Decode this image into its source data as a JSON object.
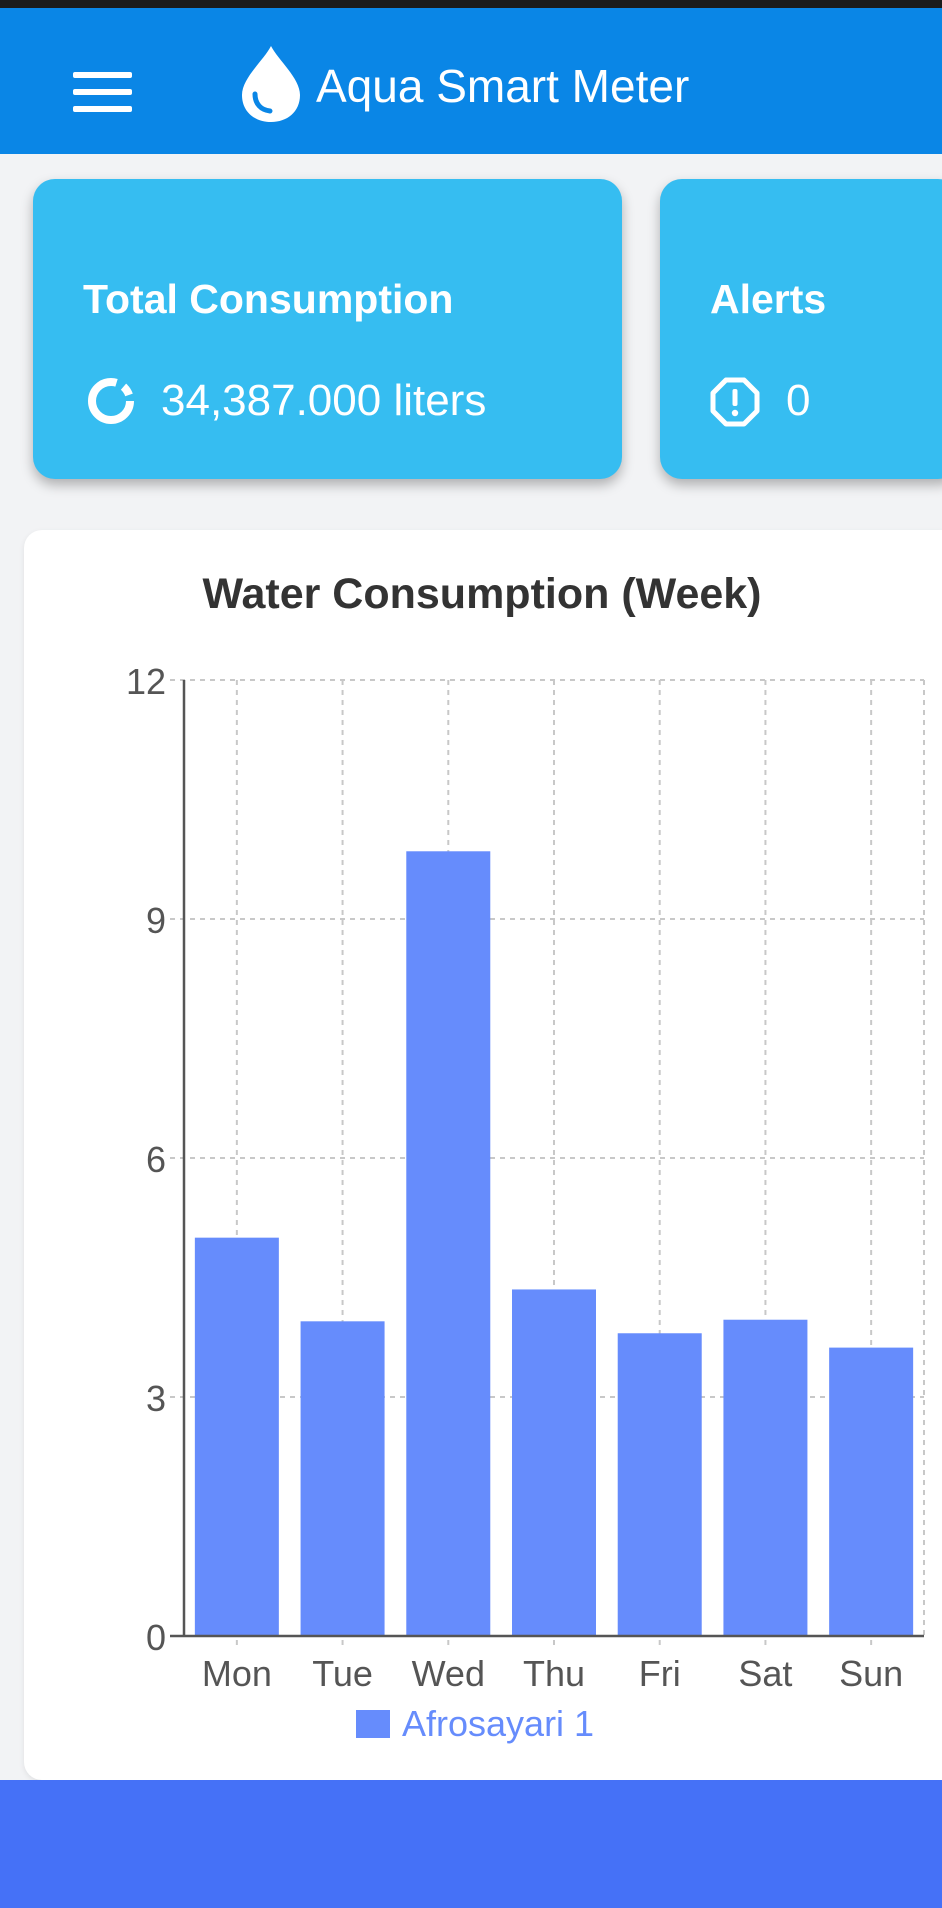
{
  "app": {
    "title": "Aqua Smart Meter",
    "menu_icon": "hamburger-menu-icon",
    "logo_icon": "water-drop-icon",
    "header_color": "#0a86e6"
  },
  "cards": {
    "total": {
      "title": "Total Consumption",
      "value": "34,387.000 liters",
      "icon": "donut-ring-icon",
      "color": "#36bdf1"
    },
    "alerts": {
      "title": "Alerts",
      "value": "0",
      "icon": "alert-octagon-icon",
      "color": "#36bdf1"
    }
  },
  "chart_data": {
    "type": "bar",
    "title": "Water Consumption (Week)",
    "categories": [
      "Mon",
      "Tue",
      "Wed",
      "Thu",
      "Fri",
      "Sat",
      "Sun"
    ],
    "series": [
      {
        "name": "Afrosayari 1",
        "values": [
          5.0,
          3.95,
          9.85,
          4.35,
          3.8,
          3.97,
          3.62
        ],
        "color": "#668cfc"
      }
    ],
    "ylim": [
      0,
      12
    ],
    "yticks": [
      0,
      3,
      6,
      9,
      12
    ],
    "grid": true,
    "grid_style": "dashed",
    "legend_position": "bottom"
  },
  "bottom_bar": {
    "color": "#4571f7"
  }
}
